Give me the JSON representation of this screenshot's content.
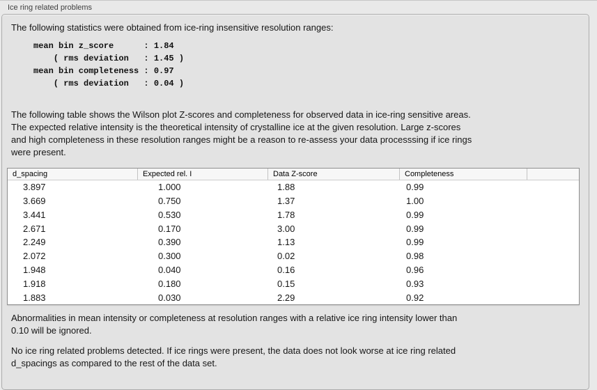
{
  "panel": {
    "title": "Ice ring related problems",
    "intro": "The following statistics were obtained from ice-ring insensitive resolution ranges:",
    "statistics": {
      "mean_bin_z_score": "1.84",
      "mean_bin_z_score_rms_deviation": "1.45",
      "mean_bin_completeness": "0.97",
      "mean_bin_completeness_rms_deviation": "0.04",
      "display": "mean bin z_score      : 1.84\n    ( rms deviation   : 1.45 )\nmean bin completeness : 0.97\n    ( rms deviation   : 0.04 )"
    },
    "description_lines": [
      "The following table shows the Wilson plot Z-scores and completeness for observed data in ice-ring sensitive areas.",
      "The expected relative intensity is the theoretical intensity of crystalline ice at the given resolution. Large z-scores",
      "and high completeness in these resolution ranges might be a reason to re-assess your data processsing if ice rings",
      "were present."
    ],
    "table": {
      "columns": [
        "d_spacing",
        "Expected rel. I",
        "Data Z-score",
        "Completeness"
      ],
      "rows": [
        [
          "3.897",
          "1.000",
          "1.88",
          "0.99"
        ],
        [
          "3.669",
          "0.750",
          "1.37",
          "1.00"
        ],
        [
          "3.441",
          "0.530",
          "1.78",
          "0.99"
        ],
        [
          "2.671",
          "0.170",
          "3.00",
          "0.99"
        ],
        [
          "2.249",
          "0.390",
          "1.13",
          "0.99"
        ],
        [
          "2.072",
          "0.300",
          "0.02",
          "0.98"
        ],
        [
          "1.948",
          "0.040",
          "0.16",
          "0.96"
        ],
        [
          "1.918",
          "0.180",
          "0.15",
          "0.93"
        ],
        [
          "1.883",
          "0.030",
          "2.29",
          "0.92"
        ]
      ]
    },
    "note_lines": [
      "Abnormalities in mean intensity or completeness at resolution ranges with a relative ice ring intensity lower than",
      "0.10 will be ignored."
    ],
    "conclusion_lines": [
      "No ice ring related problems detected. If ice rings were present, the data does not look worse at ice ring related",
      "d_spacings as compared to the rest of the data set."
    ]
  },
  "colors": {
    "page_bg": "#e9e9e9",
    "panel_bg": "#e3e3e3",
    "panel_border": "#acacac",
    "table_bg": "#ffffff",
    "table_border": "#8f8f8f",
    "header_bg": "#f7f7f7"
  }
}
